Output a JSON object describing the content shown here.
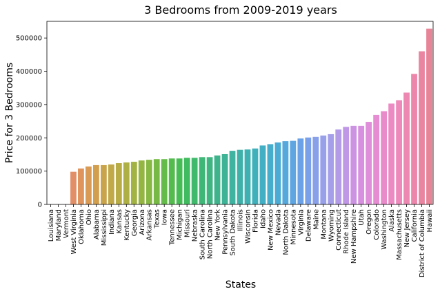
{
  "chart_data": {
    "type": "bar",
    "title": "3 Bedrooms from 2009-2019 years",
    "xlabel": "States",
    "ylabel": "Price for 3 Bedrooms",
    "ylim": [
      0,
      550000
    ],
    "yticks": [
      0,
      100000,
      200000,
      300000,
      400000,
      500000
    ],
    "ytick_labels": [
      "0",
      "100000",
      "200000",
      "300000",
      "400000",
      "500000"
    ],
    "grid": false,
    "legend": "none",
    "categories": [
      "Louisiana",
      "Maryland",
      "Vermont",
      "West Virginia",
      "Oklahoma",
      "Ohio",
      "Alabama",
      "Mississippi",
      "Indiana",
      "Kansas",
      "Kentucky",
      "Georgia",
      "Arizona",
      "Arkansas",
      "Texas",
      "Iowa",
      "Tennessee",
      "Michigan",
      "Missouri",
      "Nebraska",
      "South Carolina",
      "North Carolina",
      "New York",
      "Pennsylvania",
      "South Dakota",
      "Illinois",
      "Wisconsin",
      "Florida",
      "Idaho",
      "New Mexico",
      "Nevada",
      "North Dakota",
      "Minnesota",
      "Virginia",
      "Delaware",
      "Maine",
      "Montana",
      "Wyoming",
      "Connecticut",
      "Rhode Island",
      "New Hampshire",
      "Utah",
      "Oregon",
      "Colorado",
      "Washington",
      "Alaska",
      "Massachusetts",
      "New Jersey",
      "California",
      "District of Columbia",
      "Hawaii"
    ],
    "values": [
      0,
      0,
      0,
      98000,
      108000,
      114000,
      118000,
      118000,
      120000,
      124000,
      126000,
      128000,
      132000,
      134000,
      136000,
      136000,
      138000,
      138000,
      140000,
      140000,
      142000,
      142000,
      147000,
      151000,
      161000,
      164000,
      165000,
      168000,
      177000,
      181000,
      186000,
      190000,
      191000,
      198000,
      201000,
      203000,
      207000,
      211000,
      225000,
      233000,
      236000,
      236000,
      248000,
      269000,
      280000,
      303000,
      313000,
      336000,
      392000,
      460000,
      528000
    ],
    "colors": [
      "#e8817c",
      "#e6857a",
      "#e48a74",
      "#e28f68",
      "#df945d",
      "#d99a55",
      "#d29f4f",
      "#caa44b",
      "#c1a848",
      "#b8ac46",
      "#aeaf44",
      "#a2b243",
      "#95b543",
      "#86b843",
      "#76ba45",
      "#65bb49",
      "#54bc4e",
      "#46bc55",
      "#41bb60",
      "#40b96c",
      "#3fb777",
      "#3fb582",
      "#3fb48c",
      "#3fb396",
      "#3fb2a0",
      "#3fb1a9",
      "#3fb1b2",
      "#40b0bb",
      "#42afc4",
      "#46adcd",
      "#4cabd5",
      "#55a8dc",
      "#5fa5e2",
      "#6ba1e6",
      "#79a0e8",
      "#88a0e9",
      "#97a0e9",
      "#a59fe9",
      "#b39be8",
      "#c097e6",
      "#cc93e3",
      "#d690df",
      "#df8ed9",
      "#e58cd2",
      "#e98bcb",
      "#ec8ac3",
      "#ed89bb",
      "#ed88b3",
      "#ec86aa",
      "#ea85a1",
      "#e88497"
    ]
  }
}
